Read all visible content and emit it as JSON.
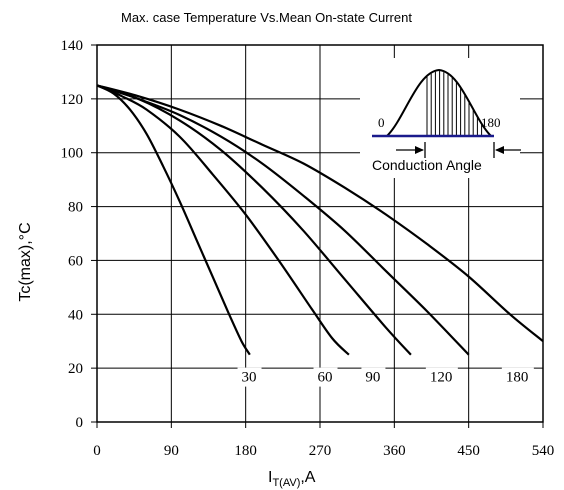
{
  "chart_data": {
    "type": "line",
    "title": "Max. case Temperature Vs.Mean On-state Current",
    "xlabel": {
      "main": "I",
      "sub": "T(AV)",
      "suffix": ",A"
    },
    "ylabel": "Tc(max),°C",
    "xlim": [
      0,
      540
    ],
    "ylim": [
      0,
      140
    ],
    "xticks": [
      "0",
      "90",
      "180",
      "270",
      "360",
      "450",
      "540"
    ],
    "yticks": [
      "0",
      "20",
      "40",
      "60",
      "80",
      "100",
      "120",
      "140"
    ],
    "grid": true,
    "series": [
      {
        "name": "30",
        "label_at": [
          175,
          15
        ],
        "points": [
          [
            0,
            125
          ],
          [
            20,
            122
          ],
          [
            40,
            116
          ],
          [
            60,
            107
          ],
          [
            80,
            95
          ],
          [
            100,
            82
          ],
          [
            120,
            68
          ],
          [
            140,
            54
          ],
          [
            160,
            40
          ],
          [
            175,
            30
          ],
          [
            185,
            25
          ]
        ]
      },
      {
        "name": "60",
        "label_at": [
          267,
          15
        ],
        "points": [
          [
            0,
            125
          ],
          [
            30,
            121
          ],
          [
            60,
            116
          ],
          [
            100,
            106
          ],
          [
            140,
            92
          ],
          [
            180,
            77
          ],
          [
            220,
            60
          ],
          [
            260,
            42
          ],
          [
            285,
            31
          ],
          [
            305,
            25
          ]
        ]
      },
      {
        "name": "90",
        "label_at": [
          325,
          15
        ],
        "points": [
          [
            0,
            125
          ],
          [
            50,
            120
          ],
          [
            100,
            112
          ],
          [
            150,
            101
          ],
          [
            200,
            87
          ],
          [
            250,
            71
          ],
          [
            300,
            53
          ],
          [
            350,
            35
          ],
          [
            380,
            25
          ]
        ]
      },
      {
        "name": "120",
        "label_at": [
          403,
          15
        ],
        "points": [
          [
            0,
            125
          ],
          [
            50,
            120
          ],
          [
            100,
            114
          ],
          [
            150,
            106
          ],
          [
            200,
            96
          ],
          [
            250,
            84
          ],
          [
            300,
            71
          ],
          [
            350,
            56
          ],
          [
            400,
            41
          ],
          [
            450,
            25
          ]
        ]
      },
      {
        "name": "180",
        "label_at": [
          495,
          15
        ],
        "points": [
          [
            0,
            125
          ],
          [
            50,
            121
          ],
          [
            100,
            116
          ],
          [
            150,
            110
          ],
          [
            200,
            103
          ],
          [
            250,
            96
          ],
          [
            300,
            87
          ],
          [
            350,
            77
          ],
          [
            400,
            66
          ],
          [
            450,
            54
          ],
          [
            500,
            40
          ],
          [
            540,
            30
          ]
        ]
      }
    ]
  },
  "inset": {
    "left_label": "0",
    "right_label": "180",
    "caption": "Conduction Angle"
  }
}
